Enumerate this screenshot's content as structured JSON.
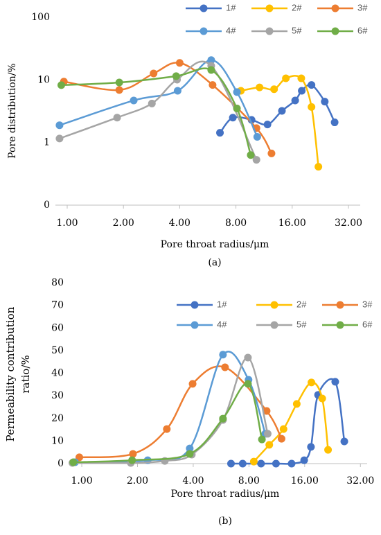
{
  "chart_data": [
    {
      "type": "line",
      "smooth": true,
      "xlog": true,
      "ylog": true,
      "x_label": "Pore throat radius/μm",
      "y_label": "Pore distribution/%",
      "caption": "(a)",
      "xlim": [
        0.865,
        37
      ],
      "ylim": [
        0.1,
        100
      ],
      "xticks": [
        {
          "value": 1,
          "label": "1.00"
        },
        {
          "value": 2,
          "label": "2.00"
        },
        {
          "value": 4,
          "label": "4.00"
        },
        {
          "value": 8,
          "label": "8.00"
        },
        {
          "value": 16,
          "label": "16.00"
        },
        {
          "value": 32,
          "label": "32.00"
        }
      ],
      "yticks": [
        {
          "value": 0.1,
          "label": "0"
        },
        1,
        10,
        100
      ],
      "series": [
        {
          "name": "1#",
          "color": "#4472c4",
          "x": [
            6.57,
            7.7,
            9.7,
            11.8,
            14.1,
            16.6,
            18.0,
            20.3,
            23.9,
            27.0
          ],
          "values": [
            1.43,
            2.5,
            2.3,
            1.94,
            3.2,
            4.7,
            6.7,
            8.3,
            4.5,
            2.1
          ]
        },
        {
          "name": "2#",
          "color": "#ffc000",
          "x": [
            8.5,
            10.7,
            12.8,
            14.8,
            17.9,
            20.3,
            22.1
          ],
          "values": [
            6.7,
            7.6,
            7.1,
            10.6,
            10.6,
            3.7,
            0.41
          ]
        },
        {
          "name": "3#",
          "color": "#ed7d31",
          "x": [
            0.96,
            1.9,
            2.9,
            4.0,
            6.0,
            10.3,
            12.4
          ],
          "values": [
            9.4,
            6.9,
            12.7,
            18.7,
            8.3,
            1.7,
            0.67
          ]
        },
        {
          "name": "4#",
          "color": "#5b9bd5",
          "x": [
            0.91,
            2.27,
            3.9,
            5.9,
            8.1,
            10.4
          ],
          "values": [
            1.89,
            4.7,
            6.7,
            20.7,
            6.4,
            1.23
          ]
        },
        {
          "name": "5#",
          "color": "#a5a5a5",
          "x": [
            0.91,
            1.85,
            2.84,
            3.87,
            5.9,
            10.3
          ],
          "values": [
            1.16,
            2.5,
            4.2,
            10.1,
            16.8,
            0.53
          ]
        },
        {
          "name": "6#",
          "color": "#70ad47",
          "x": [
            0.93,
            1.9,
            3.83,
            5.9,
            8.1,
            9.6
          ],
          "values": [
            8.25,
            9.1,
            11.5,
            14.4,
            3.5,
            0.63
          ]
        }
      ]
    },
    {
      "type": "line",
      "smooth": true,
      "xlog": true,
      "ylog": false,
      "x_label": "Pore throat radius/μm",
      "y_label": "Permeability contribution ratio/%",
      "caption": "(b)",
      "xlim": [
        0.856,
        34.8
      ],
      "ylim": [
        0,
        80
      ],
      "xticks": [
        {
          "value": 1,
          "label": "1.00"
        },
        {
          "value": 2,
          "label": "2.00"
        },
        {
          "value": 4,
          "label": "4.00"
        },
        {
          "value": 8,
          "label": "8.00"
        },
        {
          "value": 16,
          "label": "16.00"
        },
        {
          "value": 32,
          "label": "32.00"
        }
      ],
      "yticks": [
        0,
        10,
        20,
        30,
        40,
        50,
        60,
        70,
        80
      ],
      "series": [
        {
          "name": "1#",
          "color": "#4472c4",
          "x": [
            6.4,
            7.4,
            9.3,
            11.2,
            13.6,
            15.9,
            17.3,
            18.9,
            23.4,
            26.2
          ],
          "values": [
            0,
            0,
            0,
            0,
            0,
            1.5,
            7.4,
            30.4,
            36.2,
            9.8
          ]
        },
        {
          "name": "2#",
          "color": "#ffc000",
          "x": [
            8.5,
            10.3,
            12.3,
            14.5,
            17.4,
            19.9,
            21.4
          ],
          "values": [
            0.9,
            8.3,
            15.3,
            26.4,
            35.9,
            28.8,
            6.1
          ]
        },
        {
          "name": "3#",
          "color": "#ed7d31",
          "x": [
            0.97,
            1.89,
            2.88,
            3.97,
            5.94,
            9.97,
            12.0
          ],
          "values": [
            2.8,
            4.3,
            15.3,
            35.3,
            42.6,
            23.3,
            11.0
          ]
        },
        {
          "name": "4#",
          "color": "#5b9bd5",
          "x": [
            0.92,
            2.27,
            3.83,
            5.79,
            7.96,
            9.8
          ],
          "values": [
            0.6,
            1.5,
            6.7,
            48.2,
            37.1,
            13.2
          ]
        },
        {
          "name": "5#",
          "color": "#a5a5a5",
          "x": [
            0.89,
            1.84,
            2.81,
            3.93,
            5.79,
            7.9,
            10.1
          ],
          "values": [
            0.3,
            0.3,
            1.2,
            4.0,
            19.3,
            46.9,
            13.2
          ]
        },
        {
          "name": "6#",
          "color": "#70ad47",
          "x": [
            0.9,
            1.87,
            3.83,
            5.79,
            7.9,
            9.4
          ],
          "values": [
            0.6,
            1.5,
            4.3,
            19.9,
            35.3,
            10.7
          ]
        }
      ]
    }
  ]
}
